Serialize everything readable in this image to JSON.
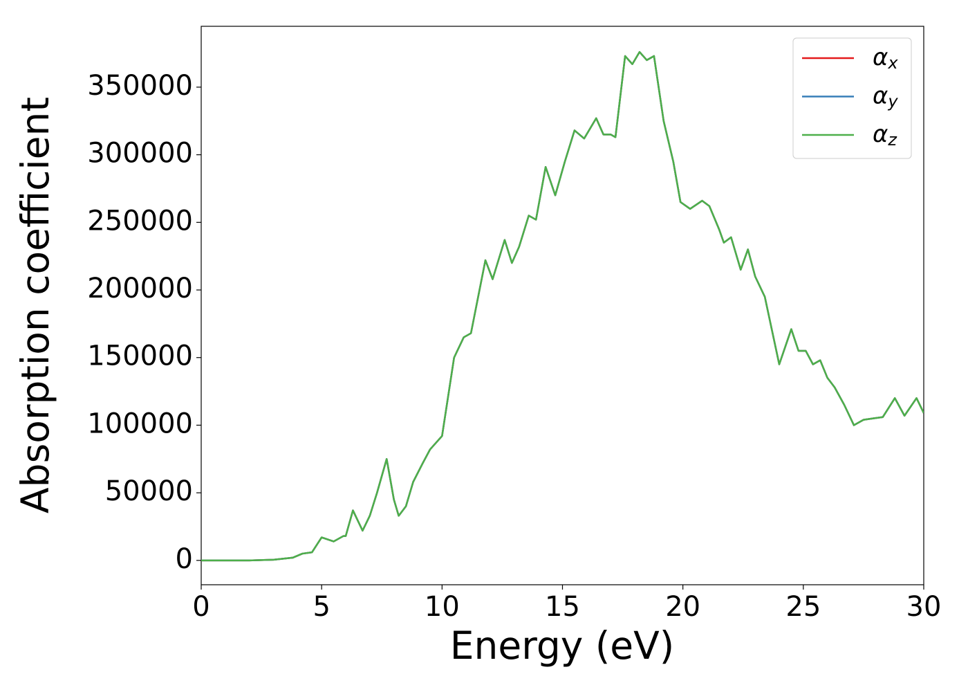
{
  "chart_data": {
    "type": "line",
    "xlabel": "Energy (eV)",
    "ylabel": "Absorption coefficient",
    "x": [
      0,
      1,
      2,
      3,
      3.8,
      4.2,
      4.6,
      5.0,
      5.5,
      5.9,
      6.0,
      6.3,
      6.7,
      7.0,
      7.3,
      7.7,
      8.0,
      8.2,
      8.5,
      8.8,
      9.2,
      9.5,
      10.0,
      10.5,
      10.9,
      11.2,
      11.5,
      11.8,
      12.1,
      12.6,
      12.9,
      13.2,
      13.6,
      13.9,
      14.3,
      14.7,
      15.1,
      15.5,
      15.9,
      16.4,
      16.7,
      17.0,
      17.2,
      17.6,
      17.9,
      18.2,
      18.5,
      18.8,
      19.2,
      19.6,
      19.9,
      20.3,
      20.8,
      21.1,
      21.5,
      21.7,
      22.0,
      22.4,
      22.7,
      23.0,
      23.4,
      23.7,
      24.0,
      24.5,
      24.8,
      25.1,
      25.4,
      25.7,
      26.0,
      26.3,
      26.7,
      27.1,
      27.5,
      27.9,
      28.3,
      28.8,
      29.2,
      29.7,
      30.0
    ],
    "series": [
      {
        "name": "α_x",
        "color": "#e41a1c",
        "values": [
          0,
          0,
          0,
          500,
          2000,
          5000,
          6000,
          17000,
          14000,
          18000,
          18000,
          37000,
          22000,
          33000,
          50000,
          75000,
          45000,
          33000,
          40000,
          58000,
          72000,
          82000,
          92000,
          150000,
          165000,
          168000,
          195000,
          222000,
          208000,
          237000,
          220000,
          232000,
          255000,
          252000,
          291000,
          270000,
          295000,
          318000,
          312000,
          327000,
          315000,
          315000,
          313000,
          373000,
          367000,
          376000,
          370000,
          373000,
          325000,
          295000,
          265000,
          260000,
          266000,
          262000,
          245000,
          235000,
          239000,
          215000,
          230000,
          210000,
          195000,
          170000,
          145000,
          171000,
          155000,
          155000,
          145000,
          148000,
          135000,
          128000,
          115000,
          100000,
          104000,
          105000,
          106000,
          120000,
          107000,
          120000,
          109000
        ]
      },
      {
        "name": "α_y",
        "color": "#377eb8",
        "values": [
          0,
          0,
          0,
          500,
          2000,
          5000,
          6000,
          17000,
          14000,
          18000,
          18000,
          37000,
          22000,
          33000,
          50000,
          75000,
          45000,
          33000,
          40000,
          58000,
          72000,
          82000,
          92000,
          150000,
          165000,
          168000,
          195000,
          222000,
          208000,
          237000,
          220000,
          232000,
          255000,
          252000,
          291000,
          270000,
          295000,
          318000,
          312000,
          327000,
          315000,
          315000,
          313000,
          373000,
          367000,
          376000,
          370000,
          373000,
          325000,
          295000,
          265000,
          260000,
          266000,
          262000,
          245000,
          235000,
          239000,
          215000,
          230000,
          210000,
          195000,
          170000,
          145000,
          171000,
          155000,
          155000,
          145000,
          148000,
          135000,
          128000,
          115000,
          100000,
          104000,
          105000,
          106000,
          120000,
          107000,
          120000,
          109000
        ]
      },
      {
        "name": "α_z",
        "color": "#4daf4a",
        "values": [
          0,
          0,
          0,
          500,
          2000,
          5000,
          6000,
          17000,
          14000,
          18000,
          18000,
          37000,
          22000,
          33000,
          50000,
          75000,
          45000,
          33000,
          40000,
          58000,
          72000,
          82000,
          92000,
          150000,
          165000,
          168000,
          195000,
          222000,
          208000,
          237000,
          220000,
          232000,
          255000,
          252000,
          291000,
          270000,
          295000,
          318000,
          312000,
          327000,
          315000,
          315000,
          313000,
          373000,
          367000,
          376000,
          370000,
          373000,
          325000,
          295000,
          265000,
          260000,
          266000,
          262000,
          245000,
          235000,
          239000,
          215000,
          230000,
          210000,
          195000,
          170000,
          145000,
          171000,
          155000,
          155000,
          145000,
          148000,
          135000,
          128000,
          115000,
          100000,
          104000,
          105000,
          106000,
          120000,
          107000,
          120000,
          109000
        ]
      }
    ],
    "xlim": [
      0,
      30
    ],
    "xticks": [
      0,
      5,
      10,
      15,
      20,
      25,
      30
    ],
    "ylim": [
      -18000,
      395000
    ],
    "yticks": [
      0,
      50000,
      100000,
      150000,
      200000,
      250000,
      300000,
      350000
    ],
    "grid": false,
    "legend": "upper right"
  }
}
